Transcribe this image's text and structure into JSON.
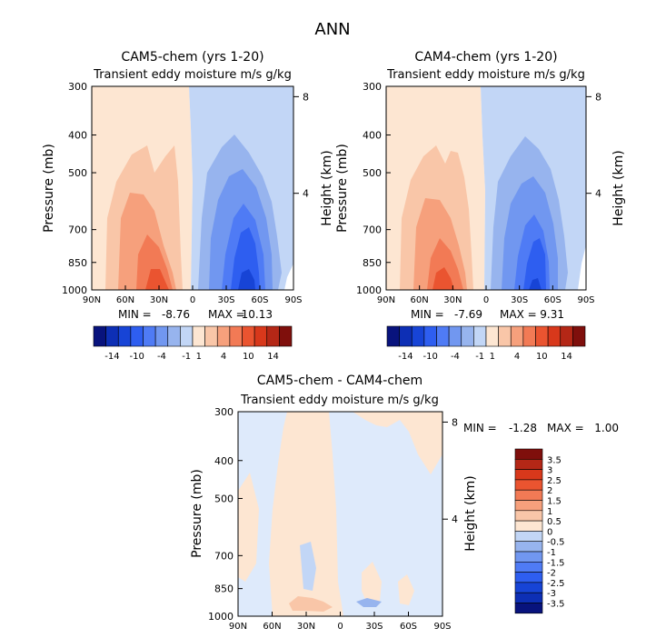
{
  "figure_title": "ANN",
  "pressure_ticks": [
    300,
    400,
    500,
    700,
    850,
    1000
  ],
  "height_ticks": [
    8,
    4
  ],
  "lat_ticks": [
    "90N",
    "60N",
    "30N",
    "0",
    "30S",
    "60S",
    "90S"
  ],
  "chart_data": [
    {
      "type": "heatmap",
      "id": "cam5",
      "title": "CAM5-chem (yrs 1-20)",
      "subtitle": "Transient eddy moisture m/s g/kg",
      "ylabel": "Pressure (mb)",
      "y2label": "Height (km)",
      "ylim": [
        1000,
        300
      ],
      "y2_ticks": [
        8,
        4
      ],
      "xlim": [
        "90N",
        "90S"
      ],
      "min_label": "MIN =",
      "min": "-8.76",
      "max_label": "MAX =",
      "max": "10.13"
    },
    {
      "type": "heatmap",
      "id": "cam4",
      "title": "CAM4-chem (yrs 1-20)",
      "subtitle": "Transient eddy moisture m/s g/kg",
      "ylabel": "Pressure (mb)",
      "y2label": "Height (km)",
      "ylim": [
        1000,
        300
      ],
      "y2_ticks": [
        8,
        4
      ],
      "xlim": [
        "90N",
        "90S"
      ],
      "min_label": "MIN =",
      "min": "-7.69",
      "max_label": "MAX =",
      "max": "9.31"
    },
    {
      "type": "heatmap",
      "id": "diff",
      "title": "CAM5-chem - CAM4-chem",
      "subtitle": "Transient eddy moisture m/s g/kg",
      "ylabel": "Pressure (mb)",
      "y2label": "Height (km)",
      "ylim": [
        1000,
        300
      ],
      "y2_ticks": [
        8,
        4
      ],
      "xlim": [
        "90N",
        "90S"
      ],
      "min_label": "MIN =",
      "min": "-1.28",
      "max_label": "MAX =",
      "max": "1.00"
    }
  ],
  "colorbar_abs": {
    "labels": [
      "-14",
      "-10",
      "-4",
      "-1",
      "1",
      "4",
      "10",
      "14"
    ],
    "colors": [
      "#08137d",
      "#0d2fb5",
      "#1744d6",
      "#2e5ef0",
      "#4f7bf5",
      "#7197f0",
      "#97b4ee",
      "#c2d6f6",
      "#fde6d2",
      "#f9c6a8",
      "#f6a07c",
      "#f27a55",
      "#ea5430",
      "#d8381b",
      "#b42716",
      "#7f0f0c"
    ]
  },
  "colorbar_diff": {
    "labels": [
      "3.5",
      "3",
      "2.5",
      "2",
      "1.5",
      "1",
      "0.5",
      "0",
      "-0.5",
      "-1",
      "-1.5",
      "-2",
      "-2.5",
      "-3",
      "-3.5"
    ],
    "colors": [
      "#7f0f0c",
      "#b42716",
      "#d8381b",
      "#ea5430",
      "#f27a55",
      "#f6a07c",
      "#f9c6a8",
      "#fde6d2",
      "#c2d6f6",
      "#97b4ee",
      "#7197f0",
      "#4f7bf5",
      "#2e5ef0",
      "#1744d6",
      "#0d2fb5",
      "#08137d"
    ]
  }
}
